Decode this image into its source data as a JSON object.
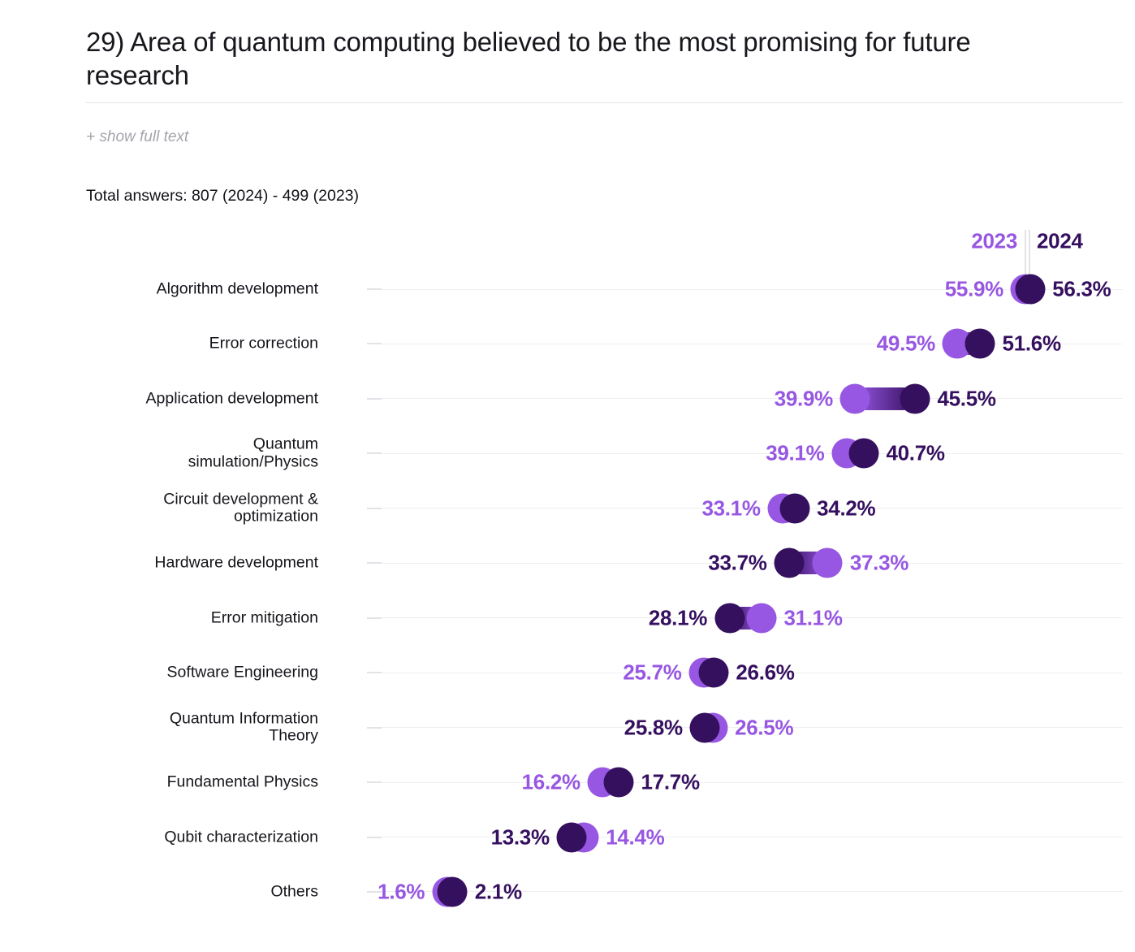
{
  "header": {
    "title": "29) Area of quantum computing believed to be the most promising for future research",
    "title_lines": [
      "29) Area of quantum computing believed to be the most promising for future",
      "research"
    ],
    "show_full_text": "+ show full text",
    "total_answers": "Total answers: 807 (2024) - 499 (2023)"
  },
  "legend": {
    "label_2023": "2023",
    "label_2024": "2024"
  },
  "colors": {
    "c2023": "#9757e2",
    "c2024": "#35105f",
    "gridline": "#efeff2"
  },
  "chart_data": {
    "type": "scatter",
    "subtype": "dumbbell",
    "orientation": "horizontal",
    "value_suffix": "%",
    "xlim": [
      0,
      65
    ],
    "grid": true,
    "legend_position": "top-right",
    "categories": [
      "Algorithm development",
      "Error correction",
      "Application development",
      "Quantum simulation/Physics",
      "Circuit development & optimization",
      "Hardware development",
      "Error mitigation",
      "Software Engineering",
      "Quantum Information Theory",
      "Fundamental Physics",
      "Qubit characterization",
      "Others"
    ],
    "category_lines": [
      [
        "Algorithm development"
      ],
      [
        "Error correction"
      ],
      [
        "Application development"
      ],
      [
        "Quantum",
        "simulation/Physics"
      ],
      [
        "Circuit development &",
        "optimization"
      ],
      [
        "Hardware development"
      ],
      [
        "Error mitigation"
      ],
      [
        "Software Engineering"
      ],
      [
        "Quantum Information",
        "Theory"
      ],
      [
        "Fundamental Physics"
      ],
      [
        "Qubit characterization"
      ],
      [
        "Others"
      ]
    ],
    "series": [
      {
        "name": "2023",
        "color": "#9757e2",
        "values": [
          55.9,
          49.5,
          39.9,
          39.1,
          33.1,
          37.3,
          31.1,
          25.7,
          26.5,
          16.2,
          14.4,
          1.6
        ]
      },
      {
        "name": "2024",
        "color": "#35105f",
        "values": [
          56.3,
          51.6,
          45.5,
          40.7,
          34.2,
          33.7,
          28.1,
          26.6,
          25.8,
          17.7,
          13.3,
          2.1
        ]
      }
    ]
  }
}
